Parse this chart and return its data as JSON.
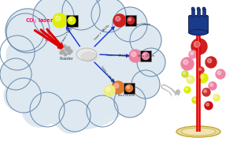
{
  "bg_color": "#ffffff",
  "cloud_color": "#dde8f0",
  "cloud_edge": "#6888aa",
  "co2_color": "#ff1060",
  "arrow_blue": "#1030cc",
  "sphere_yellow": "#ddee00",
  "sphere_red": "#cc2020",
  "sphere_pink": "#ee80a0",
  "sphere_orange": "#e07830",
  "sphere_pale_yellow": "#eeee80",
  "sphere_dark_red": "#aa1010",
  "plug_color": "#1a3a8a",
  "disc_outer": "#d4a020",
  "disc_inner": "#e8c040",
  "laser_red": "#dd0000",
  "laser_bright": "#ff6060",
  "scattered": [
    [
      253,
      130,
      10,
      "#cc2020"
    ],
    [
      238,
      108,
      8,
      "#ee80a0"
    ],
    [
      268,
      110,
      7,
      "#cc2020"
    ],
    [
      258,
      90,
      6,
      "#ddee00"
    ],
    [
      242,
      88,
      5,
      "#eeee80"
    ],
    [
      270,
      80,
      5,
      "#ee80a0"
    ],
    [
      238,
      75,
      4,
      "#ddee00"
    ],
    [
      262,
      72,
      5,
      "#cc3030"
    ],
    [
      280,
      95,
      6,
      "#ee88a8"
    ],
    [
      248,
      62,
      4,
      "#dddd00"
    ],
    [
      265,
      55,
      5,
      "#cc1010"
    ],
    [
      255,
      100,
      4,
      "#dd3030"
    ],
    [
      275,
      65,
      4,
      "#eeee60"
    ],
    [
      245,
      120,
      5,
      "#ee90b0"
    ],
    [
      235,
      95,
      4,
      "#ccdd30"
    ]
  ]
}
